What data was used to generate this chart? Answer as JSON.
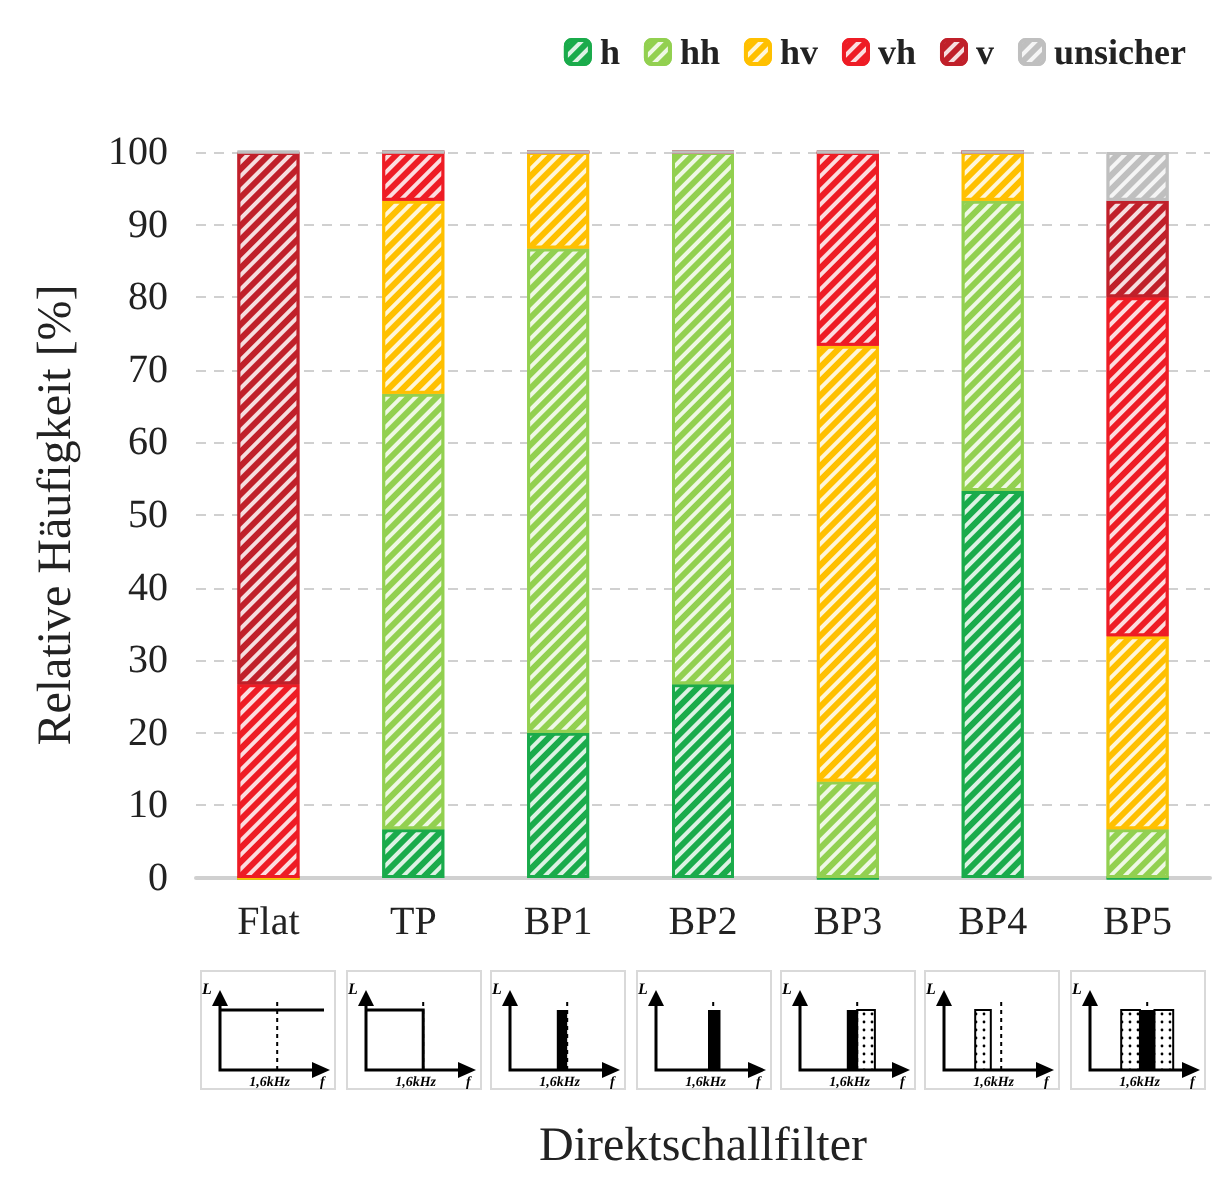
{
  "chart_data": {
    "type": "bar",
    "stacked": true,
    "xlabel": "Direktschallfilter",
    "ylabel": "Relative Häufigkeit [%]",
    "categories": [
      "Flat",
      "TP",
      "BP1",
      "BP2",
      "BP3",
      "BP4",
      "BP5"
    ],
    "series": [
      {
        "name": "h",
        "color": "#1aab4b",
        "values": [
          0,
          6.7,
          20,
          26.7,
          0,
          53.3,
          0
        ]
      },
      {
        "name": "hh",
        "color": "#92d050",
        "values": [
          0,
          60,
          66.7,
          73.3,
          13.3,
          40,
          6.7
        ]
      },
      {
        "name": "hv",
        "color": "#ffc000",
        "values": [
          0,
          26.6,
          13.3,
          0,
          60,
          6.7,
          26.6
        ]
      },
      {
        "name": "vh",
        "color": "#ee1c25",
        "values": [
          26.7,
          6.7,
          0,
          0,
          26.7,
          0,
          46.7
        ]
      },
      {
        "name": "v",
        "color": "#c0202a",
        "values": [
          73.3,
          0,
          0,
          0,
          0,
          0,
          13.3
        ]
      },
      {
        "name": "unsicher",
        "color": "#bfbfbf",
        "values": [
          0,
          0,
          0,
          0,
          0,
          0,
          6.7
        ]
      }
    ],
    "ylim": [
      0,
      100
    ],
    "yticks": [
      0,
      10,
      20,
      30,
      40,
      50,
      60,
      70,
      80,
      90,
      100
    ],
    "grid": "y",
    "legend": "top right",
    "annotations": [
      "L",
      "1,6kHz",
      "f"
    ]
  }
}
